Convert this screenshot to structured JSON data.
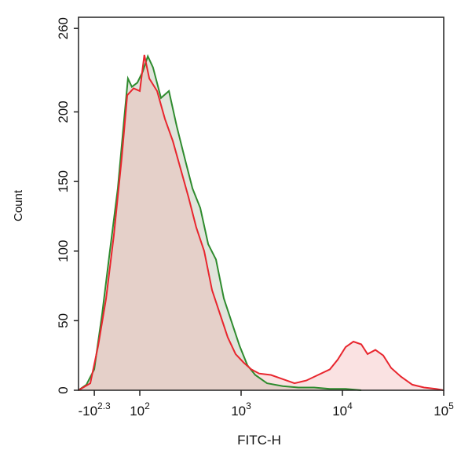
{
  "chart_data": {
    "type": "histogram-overlay",
    "x_label": "FITC-H",
    "y_label": "Count",
    "xlim": [
      -304,
      100000
    ],
    "ylim": [
      0,
      268
    ],
    "xticks": [
      {
        "value": -199.5,
        "label": "-10",
        "sup": "2.3"
      },
      {
        "value": 100,
        "label": "10",
        "sup": "2"
      },
      {
        "value": 1000,
        "label": "10",
        "sup": "3"
      },
      {
        "value": 10000,
        "label": "10",
        "sup": "4"
      },
      {
        "value": 100000,
        "label": "10",
        "sup": "5"
      }
    ],
    "yticks": [
      0,
      50,
      100,
      150,
      200,
      260
    ],
    "series": [
      {
        "color": "#2e8b2e",
        "fill": "#9aa88c",
        "x": [
          -304,
          -252,
          -200,
          -148,
          -97,
          -45,
          -3,
          22,
          48,
          84,
          107,
          120,
          135,
          162,
          194,
          231,
          277,
          331,
          395,
          473,
          565,
          675,
          807,
          965,
          1154,
          1379,
          1802,
          2575,
          3680,
          5258,
          7516,
          10740,
          15350
        ],
        "values": [
          0,
          4,
          15,
          55,
          100,
          145,
          195,
          224,
          218,
          221,
          229,
          240,
          232,
          210,
          215,
          190,
          167,
          145,
          131,
          105,
          94,
          66,
          49,
          32,
          18,
          11,
          5,
          3,
          2,
          2,
          1,
          1,
          0
        ]
      },
      {
        "color": "#e8262e",
        "fill": "#f0a0a0",
        "x": [
          -304,
          -226,
          -174,
          -122,
          -71,
          -19,
          17,
          59,
          100,
          111,
          124,
          148,
          177,
          212,
          253,
          302,
          361,
          432,
          517,
          618,
          738,
          883,
          1056,
          1261,
          1507,
          1971,
          2575,
          3365,
          4396,
          5750,
          7516,
          8981,
          10740,
          12840,
          15350,
          17700,
          21170,
          25300,
          30270,
          37500,
          48980,
          63980,
          83610,
          100000
        ],
        "values": [
          0,
          5,
          32,
          66,
          111,
          167,
          212,
          217,
          215,
          241,
          224,
          215,
          195,
          179,
          159,
          139,
          117,
          100,
          72,
          55,
          38,
          26,
          20,
          15,
          12,
          11,
          8,
          5,
          7,
          11,
          15,
          22,
          31,
          35,
          33,
          26,
          29,
          25,
          16,
          10,
          4,
          2,
          1,
          0
        ]
      }
    ]
  }
}
